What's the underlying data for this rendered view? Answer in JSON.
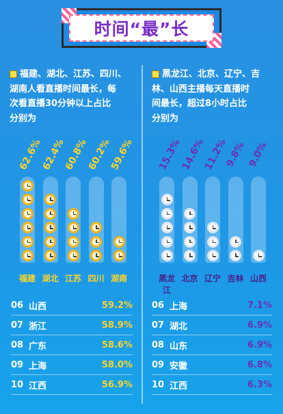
{
  "title": "时间“最”长",
  "left_panel": {
    "description_lines": [
      "福建、湖北、江苏、四川、",
      "湖南人看直播时间最长，每",
      "次看直播30分钟以上占比",
      "分别为"
    ],
    "bars": [
      {
        "name": "福建",
        "label": "62.6%",
        "clocks": 6
      },
      {
        "name": "湖北",
        "label": "62.4%",
        "clocks": 5
      },
      {
        "name": "江苏",
        "label": "60.8%",
        "clocks": 4
      },
      {
        "name": "四川",
        "label": "60.2%",
        "clocks": 3
      },
      {
        "name": "湖南",
        "label": "59.6%",
        "clocks": 2
      }
    ],
    "ranks": [
      {
        "rank": "06",
        "name": "山西",
        "value": "59.2%"
      },
      {
        "rank": "07",
        "name": "浙江",
        "value": "58.9%"
      },
      {
        "rank": "08",
        "name": "广东",
        "value": "58.6%"
      },
      {
        "rank": "09",
        "name": "上海",
        "value": "58.0%"
      },
      {
        "rank": "10",
        "name": "江西",
        "value": "56.9%"
      }
    ]
  },
  "right_panel": {
    "description_lines": [
      "黑龙江、北京、辽宁、吉",
      "林、山西主播每天直播时",
      "间最长，超过8小时占比",
      "分别为"
    ],
    "bars": [
      {
        "name": "黑龙江",
        "label": "15.3%",
        "clocks": 5
      },
      {
        "name": "北京",
        "label": "14.6%",
        "clocks": 4
      },
      {
        "name": "辽宁",
        "label": "11.2%",
        "clocks": 3
      },
      {
        "name": "吉林",
        "label": "9.8%",
        "clocks": 2
      },
      {
        "name": "山西",
        "label": "9.0%",
        "clocks": 1
      }
    ],
    "ranks": [
      {
        "rank": "06",
        "name": "上海",
        "value": "7.1%"
      },
      {
        "rank": "07",
        "name": "湖北",
        "value": "6.9%"
      },
      {
        "rank": "08",
        "name": "山东",
        "value": "6.9%"
      },
      {
        "rank": "09",
        "name": "安徽",
        "value": "6.8%"
      },
      {
        "rank": "10",
        "name": "江西",
        "value": "6.3%"
      }
    ]
  },
  "colors": {
    "left_accent": "#ffd42a",
    "right_accent": "#6a2fb5",
    "clock_gold": "#f2b51c"
  },
  "chart_data": [
    {
      "type": "bar",
      "categories": [
        "福建",
        "湖北",
        "江苏",
        "四川",
        "湖南"
      ],
      "values": [
        62.6,
        62.4,
        60.8,
        60.2,
        59.6
      ],
      "data_labels": [
        "62.6%",
        "62.4%",
        "60.8%",
        "60.2%",
        "59.6%"
      ]
    },
    {
      "type": "bar",
      "categories": [
        "黑龙江",
        "北京",
        "辽宁",
        "吉林",
        "山西"
      ],
      "values": [
        15.3,
        14.6,
        11.2,
        9.8,
        9.0
      ],
      "data_labels": [
        "15.3%",
        "14.6%",
        "11.2%",
        "9.8%",
        "9.0%"
      ]
    }
  ]
}
